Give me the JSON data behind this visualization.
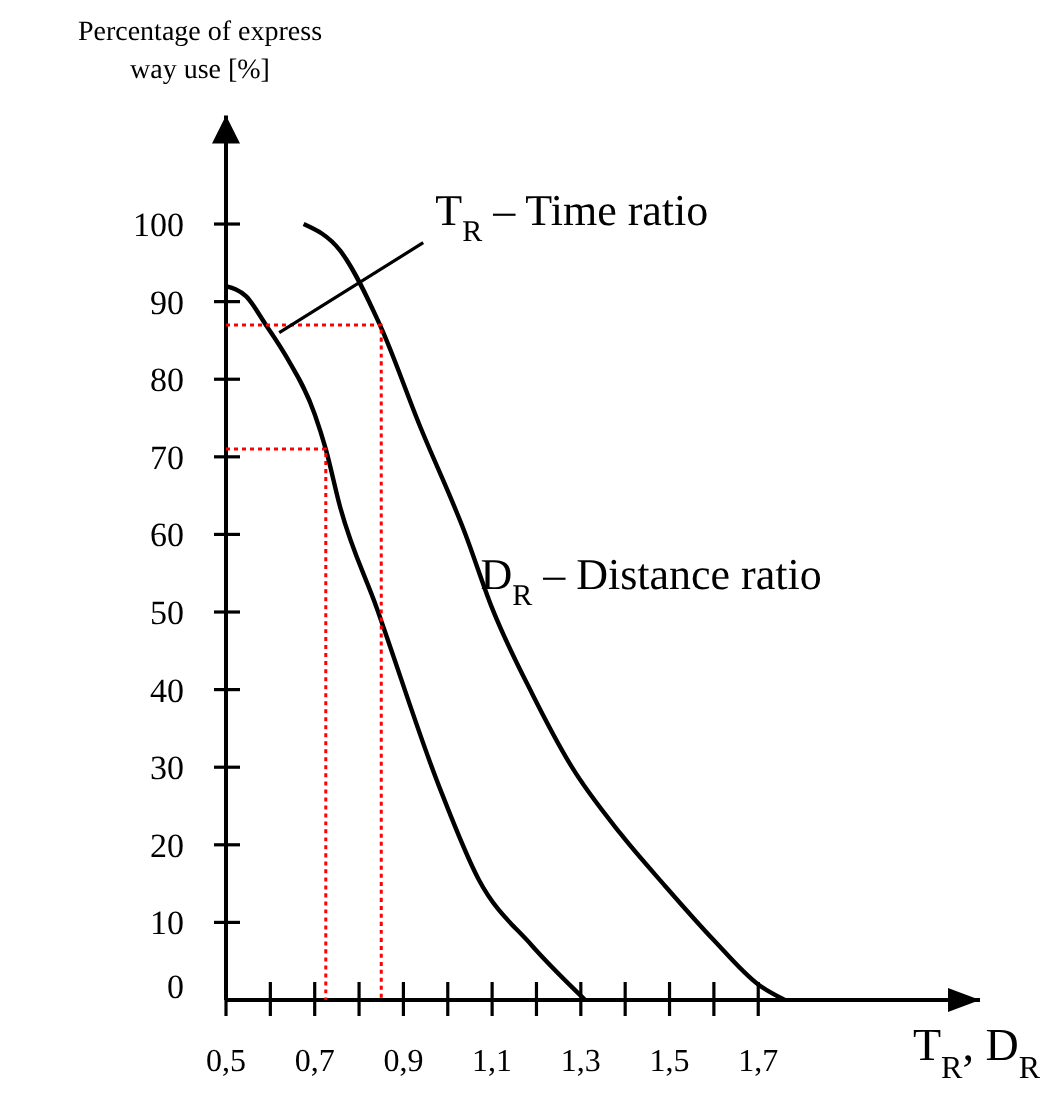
{
  "chart_data": {
    "type": "line",
    "xlabel": "T$_{R}$, D$_{R}$",
    "ylabel": "Percentage of express way use [%]",
    "xlim": [
      0.5,
      2.2
    ],
    "ylim": [
      0,
      114
    ],
    "xticks": [
      {
        "value": 0.5,
        "label": "0,5"
      },
      {
        "value": 0.6,
        "label": null
      },
      {
        "value": 0.7,
        "label": "0,7"
      },
      {
        "value": 0.8,
        "label": null
      },
      {
        "value": 0.9,
        "label": "0,9"
      },
      {
        "value": 1.0,
        "label": null
      },
      {
        "value": 1.1,
        "label": "1,1"
      },
      {
        "value": 1.2,
        "label": null
      },
      {
        "value": 1.3,
        "label": "1,3"
      },
      {
        "value": 1.4,
        "label": null
      },
      {
        "value": 1.5,
        "label": "1,5"
      },
      {
        "value": 1.6,
        "label": null
      },
      {
        "value": 1.7,
        "label": "1,7"
      }
    ],
    "yticks": [
      0,
      10,
      20,
      30,
      40,
      50,
      60,
      70,
      80,
      90,
      100
    ],
    "grid": false,
    "marker": "none",
    "series": [
      {
        "color": "#000000",
        "line_style": "solid",
        "x": [
          0.5,
          0.545,
          0.59,
          0.635,
          0.7,
          0.725,
          0.757,
          0.84,
          0.98,
          1.07,
          1.19,
          1.31
        ],
        "values": [
          92,
          90.7,
          87,
          83,
          75.5,
          71,
          63.6,
          50.5,
          27.6,
          15.5,
          7,
          0
        ]
      },
      {
        "color": "#000000",
        "line_style": "solid",
        "x": [
          0.675,
          0.757,
          0.847,
          0.937,
          1.04,
          1.1,
          1.19,
          1.28,
          1.39,
          1.49,
          1.6,
          1.7,
          1.76
        ],
        "values": [
          100,
          96.6,
          87,
          74,
          60,
          50.5,
          39.5,
          30,
          21.4,
          14.7,
          7.7,
          2,
          0
        ]
      },
      {
        "color": "#ff0000",
        "line_style": "dotted",
        "x": [
          0.5,
          0.85,
          0.85
        ],
        "values": [
          87,
          87,
          0
        ]
      },
      {
        "color": "#ff0000",
        "line_style": "dotted",
        "x": [
          0.5,
          0.725,
          0.725
        ],
        "values": [
          71,
          71,
          0
        ]
      }
    ],
    "annotations": [
      {
        "text": "T$_{R}$ – Time ratio",
        "x": 0.62,
        "y": 86
      },
      {
        "text": "D$_{R}$ – Distance ratio",
        "x": 1.06,
        "y": 55
      }
    ]
  }
}
